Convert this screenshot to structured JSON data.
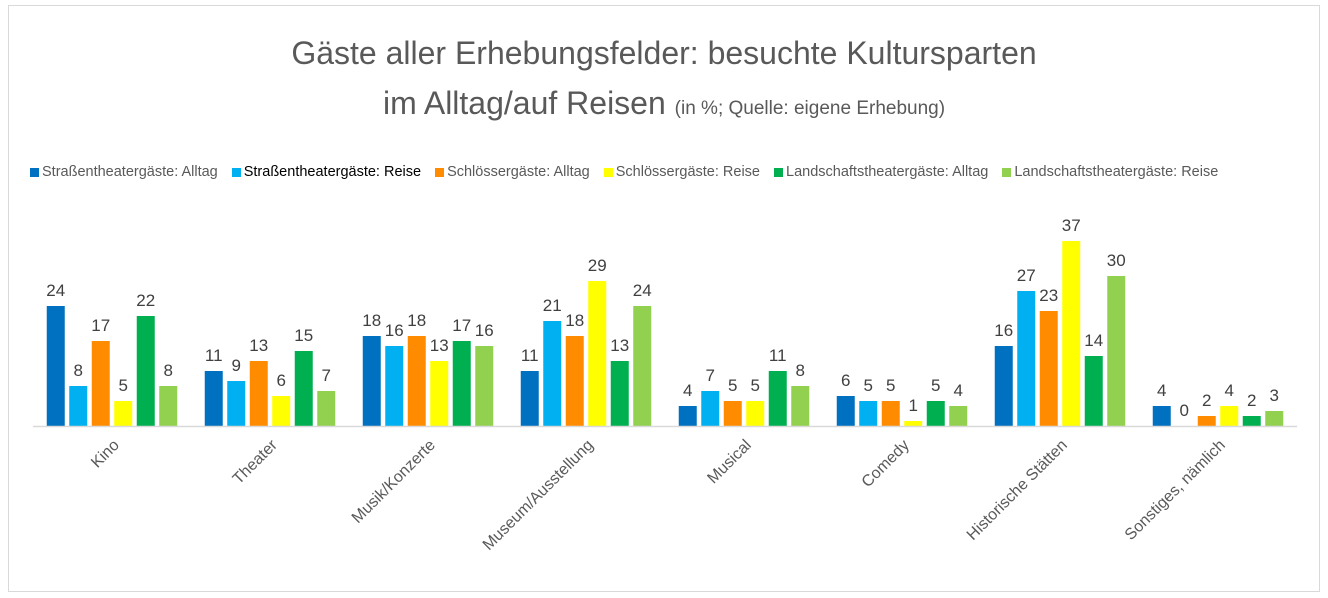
{
  "chart_data": {
    "type": "bar",
    "title": "Gäste aller Erhebungsfelder: besuchte Kultursparten",
    "title_line2": "im Alltag/auf Reisen",
    "subtitle": "(in %; Quelle: eigene Erhebung)",
    "categories": [
      "Kino",
      "Theater",
      "Musik/Konzerte",
      "Museum/Ausstellung",
      "Musical",
      "Comedy",
      "Historische Stätten",
      "Sonstiges, nämlich"
    ],
    "series": [
      {
        "name": "Straßentheatergäste: Alltag",
        "color": "#0070C0",
        "values": [
          24,
          11,
          18,
          11,
          4,
          6,
          16,
          4
        ]
      },
      {
        "name": "Straßentheatergäste: Reise",
        "color": "#00B0F0",
        "values": [
          8,
          9,
          16,
          21,
          7,
          5,
          27,
          0
        ]
      },
      {
        "name": "Schlössergäste: Alltag",
        "color": "#FF8C00",
        "values": [
          17,
          13,
          18,
          18,
          5,
          5,
          23,
          2
        ]
      },
      {
        "name": "Schlössergäste: Reise",
        "color": "#FFFF00",
        "values": [
          5,
          6,
          13,
          29,
          5,
          1,
          37,
          4
        ]
      },
      {
        "name": "Landschaftstheatergäste: Alltag",
        "color": "#00B050",
        "values": [
          22,
          15,
          17,
          13,
          11,
          5,
          14,
          2
        ]
      },
      {
        "name": "Landschaftstheatergäste: Reise",
        "color": "#92D050",
        "values": [
          8,
          7,
          16,
          24,
          8,
          4,
          30,
          3
        ]
      }
    ],
    "ylim": [
      0,
      40
    ],
    "grid": false,
    "data_labels": true,
    "legend_position": "top"
  }
}
